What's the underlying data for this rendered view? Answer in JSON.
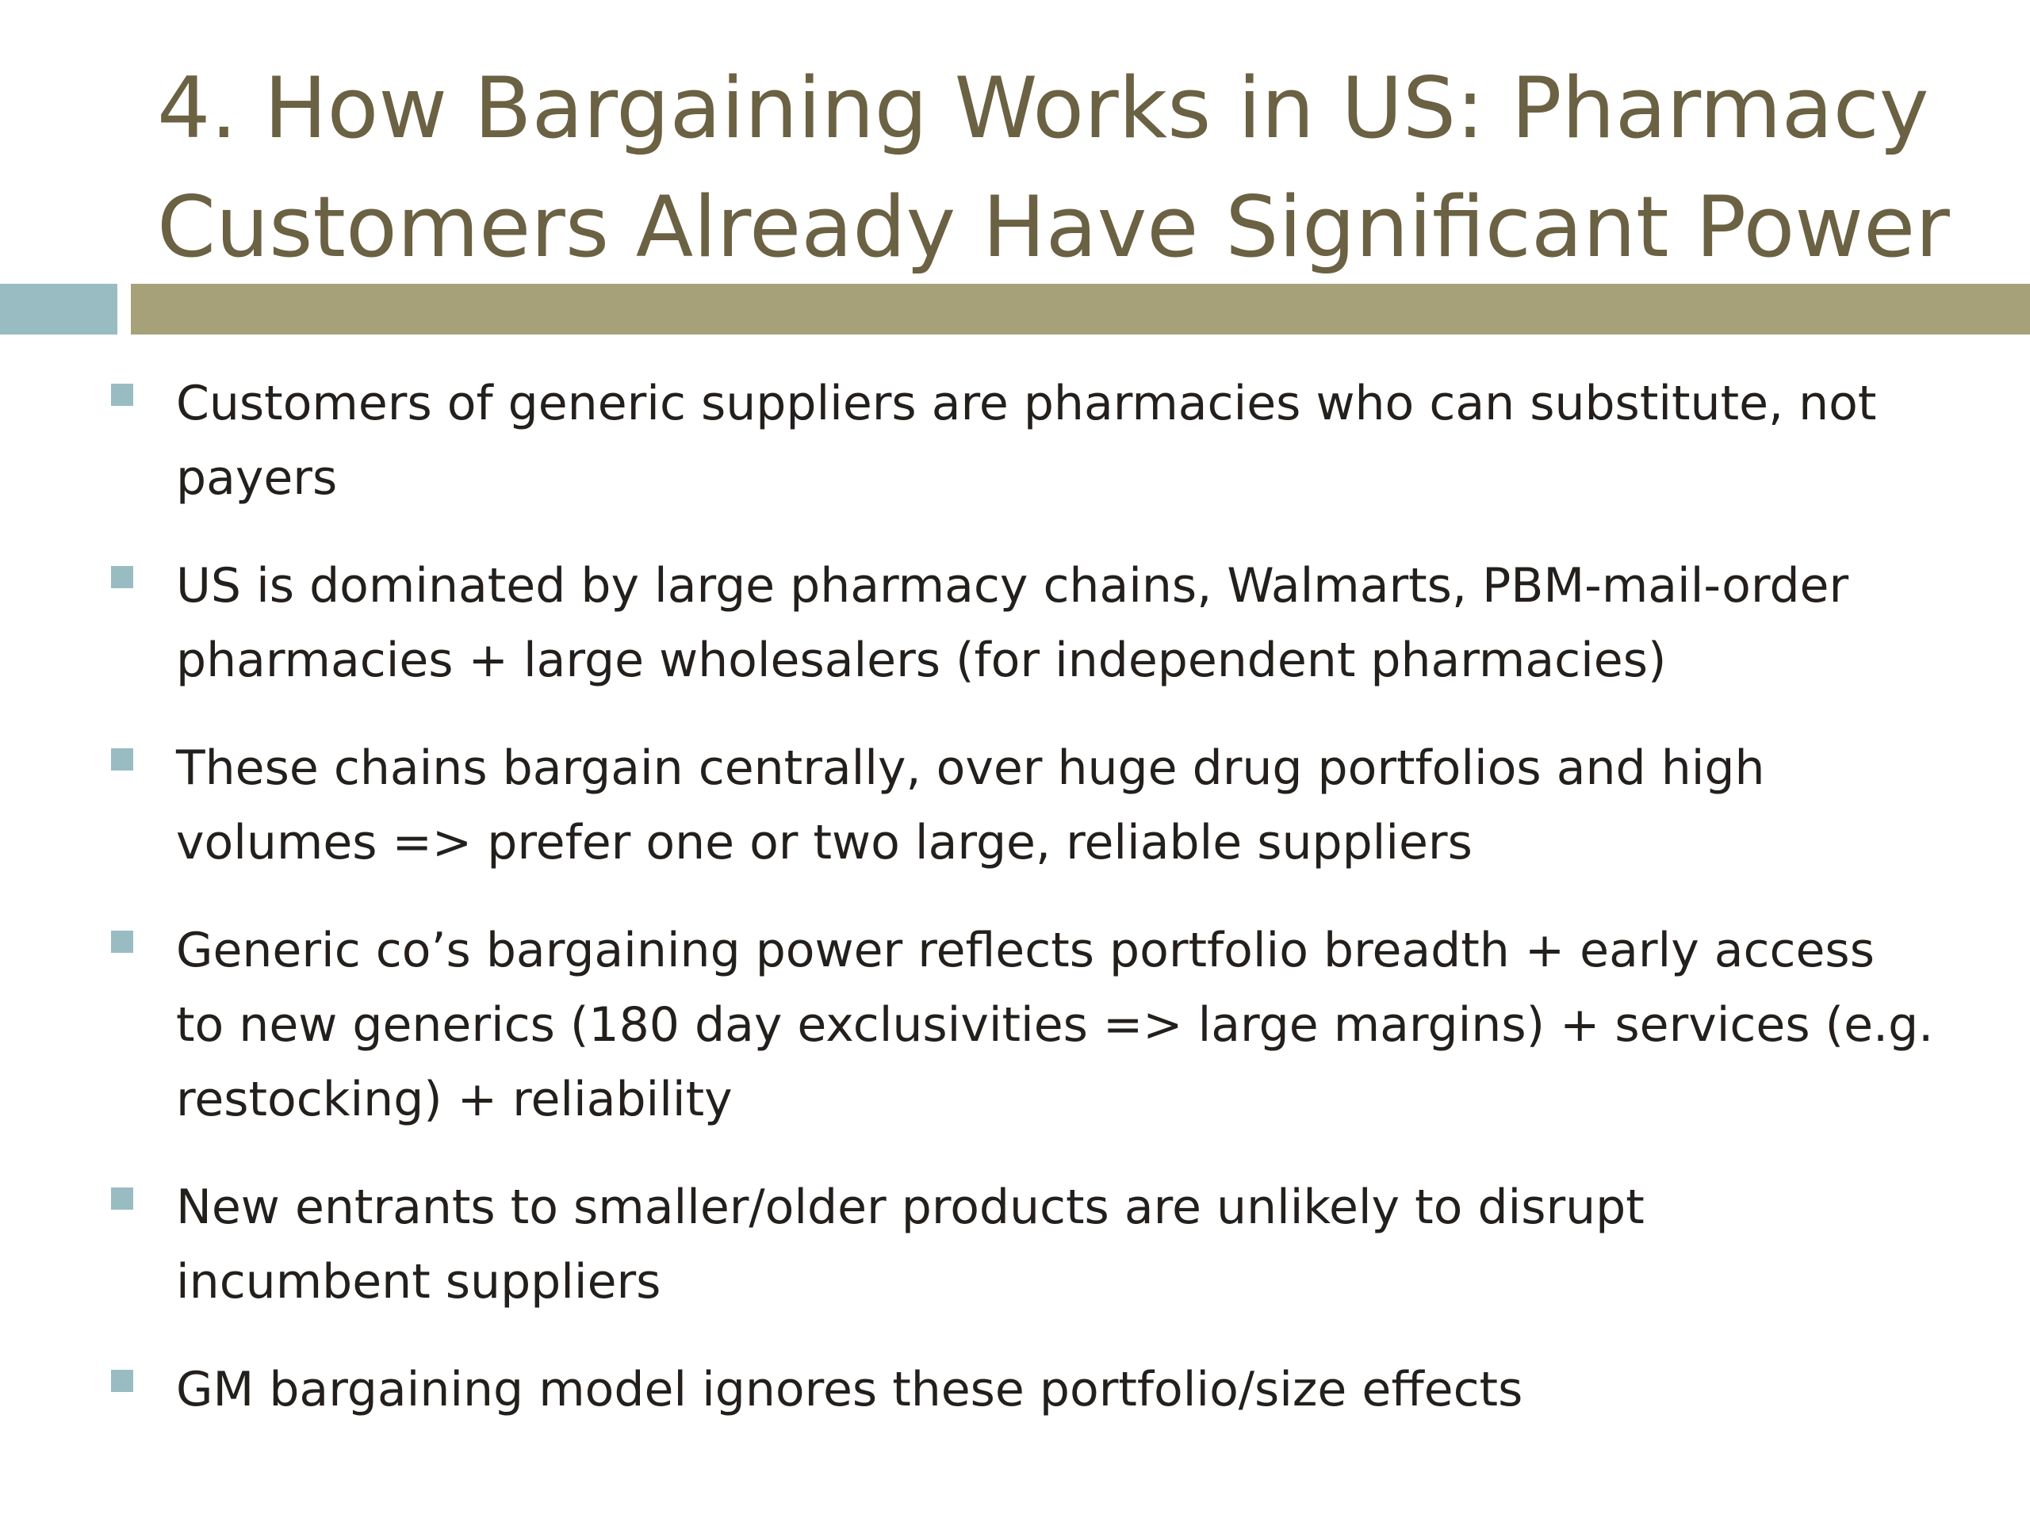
{
  "slide": {
    "title_lines": [
      "4. How Bargaining Works in US: Pharmacy",
      "Customers Already Have Significant Power"
    ],
    "bullets": [
      {
        "lines": [
          "Customers of generic suppliers are pharmacies who can substitute, not",
          "payers"
        ]
      },
      {
        "lines": [
          "US is dominated by large pharmacy chains, Walmarts, PBM-mail-order",
          "pharmacies + large wholesalers (for independent pharmacies)"
        ]
      },
      {
        "lines": [
          "These chains bargain centrally, over huge drug portfolios and high",
          "volumes => prefer one or two large, reliable suppliers"
        ]
      },
      {
        "lines": [
          "Generic co’s bargaining power reflects portfolio breadth + early access",
          "to new generics (180 day exclusivities => large margins) + services (e.g.",
          "restocking) + reliability"
        ]
      },
      {
        "lines": [
          "New entrants to smaller/older products are unlikely to disrupt",
          "incumbent suppliers"
        ]
      },
      {
        "lines": [
          "GM bargaining model ignores these portfolio/size effects"
        ]
      }
    ]
  },
  "colors": {
    "title": "#6b6143",
    "text": "#231f1c",
    "accent_teal": "#98bcc2",
    "accent_olive": "#a7a17a"
  }
}
